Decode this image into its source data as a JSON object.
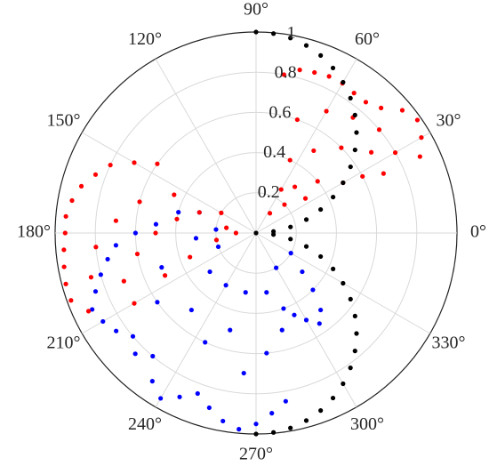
{
  "chart_data": {
    "type": "polar-scatter",
    "rlim": [
      0,
      1
    ],
    "rticks": [
      0.2,
      0.4,
      0.6,
      0.8,
      1
    ],
    "thetaticks": [
      {
        "value": 0,
        "label": "0°"
      },
      {
        "value": 30,
        "label": "30°"
      },
      {
        "value": 60,
        "label": "60°"
      },
      {
        "value": 90,
        "label": "90°"
      },
      {
        "value": 120,
        "label": "120°"
      },
      {
        "value": 150,
        "label": "150°"
      },
      {
        "value": 180,
        "label": "180°"
      },
      {
        "value": 210,
        "label": "210°"
      },
      {
        "value": 240,
        "label": "240°"
      },
      {
        "value": 270,
        "label": "270°"
      },
      {
        "value": 300,
        "label": "300°"
      },
      {
        "value": 330,
        "label": "330°"
      }
    ],
    "grid": true,
    "series": [
      {
        "color": "#0000ff",
        "theta": [
          160,
          165,
          175,
          180,
          185,
          190,
          195,
          200,
          205,
          210,
          215,
          220,
          225,
          230,
          235,
          240,
          245,
          250,
          255,
          260,
          265,
          270,
          275,
          280,
          185,
          200,
          215,
          230,
          245,
          255,
          265,
          275,
          285,
          290,
          295,
          300,
          305,
          310,
          315,
          320,
          330,
          220,
          240,
          260,
          280,
          300,
          200,
          175
        ],
        "r": [
          0.3,
          0.4,
          0.5,
          0.6,
          0.7,
          0.75,
          0.8,
          0.85,
          0.9,
          0.88,
          0.85,
          0.8,
          0.85,
          0.8,
          0.9,
          0.95,
          0.9,
          0.85,
          0.9,
          0.95,
          0.98,
          0.95,
          0.9,
          0.85,
          0.3,
          0.5,
          0.6,
          0.5,
          0.6,
          0.5,
          0.7,
          0.6,
          0.5,
          0.4,
          0.45,
          0.5,
          0.55,
          0.5,
          0.4,
          0.3,
          0.2,
          0.3,
          0.3,
          0.3,
          0.3,
          0.2,
          0.2,
          0.2
        ]
      },
      {
        "color": "#ff0000",
        "theta": [
          25,
          30,
          35,
          40,
          45,
          50,
          55,
          60,
          65,
          70,
          75,
          80,
          35,
          45,
          55,
          65,
          30,
          40,
          50,
          60,
          35,
          45,
          55,
          70,
          60,
          50,
          40,
          30,
          25,
          28,
          145,
          150,
          155,
          160,
          165,
          170,
          175,
          180,
          185,
          190,
          195,
          200,
          205,
          210,
          200,
          190,
          180,
          170,
          160,
          150,
          185,
          175,
          165,
          155,
          195,
          205,
          200,
          190,
          180,
          170
        ],
        "r": [
          0.9,
          0.95,
          0.98,
          0.95,
          0.88,
          0.85,
          0.85,
          0.86,
          0.86,
          0.85,
          0.84,
          0.8,
          0.7,
          0.6,
          0.5,
          0.4,
          0.5,
          0.4,
          0.3,
          0.25,
          0.3,
          0.2,
          0.12,
          0.6,
          0.7,
          0.75,
          0.8,
          0.8,
          0.7,
          0.6,
          0.6,
          0.7,
          0.8,
          0.85,
          0.9,
          0.93,
          0.95,
          0.95,
          0.96,
          0.97,
          0.98,
          0.98,
          0.92,
          0.7,
          0.7,
          0.6,
          0.5,
          0.4,
          0.3,
          0.2,
          0.8,
          0.7,
          0.6,
          0.45,
          0.85,
          0.5,
          0.35,
          0.2,
          0.1,
          0.15
        ]
      },
      {
        "color": "#000000",
        "theta": [
          0,
          5,
          10,
          15,
          20,
          25,
          30,
          35,
          40,
          45,
          50,
          55,
          60,
          65,
          70,
          75,
          80,
          85,
          90,
          270,
          275,
          280,
          285,
          290,
          295,
          300,
          305,
          310,
          315,
          320,
          325,
          330,
          335,
          340,
          345,
          350,
          355
        ],
        "r": [
          0,
          0.087,
          0.174,
          0.259,
          0.342,
          0.423,
          0.5,
          0.574,
          0.643,
          0.707,
          0.766,
          0.819,
          0.866,
          0.906,
          0.94,
          0.966,
          0.985,
          0.996,
          1,
          1,
          0.996,
          0.985,
          0.966,
          0.94,
          0.906,
          0.866,
          0.819,
          0.766,
          0.707,
          0.643,
          0.574,
          0.5,
          0.423,
          0.342,
          0.259,
          0.174,
          0.087
        ]
      }
    ]
  }
}
